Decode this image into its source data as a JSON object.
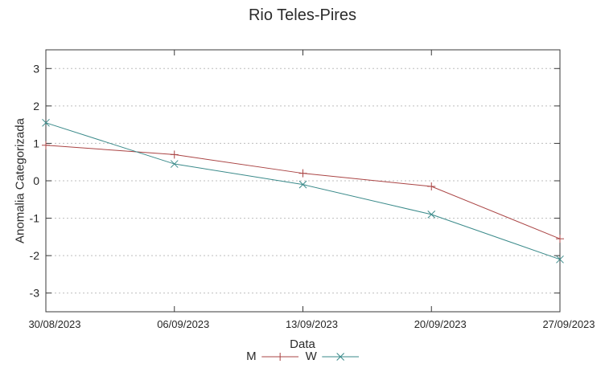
{
  "chart": {
    "title": "Rio Teles-Pires",
    "xlabel": "Data",
    "ylabel": "Anomalia Categorizada"
  },
  "chart_data": {
    "type": "line",
    "title": "Rio Teles-Pires",
    "xlabel": "Data",
    "ylabel": "Anomalia Categorizada",
    "categories": [
      "30/08/2023",
      "06/09/2023",
      "13/09/2023",
      "20/09/2023",
      "27/09/2023"
    ],
    "series": [
      {
        "name": "M",
        "color": "#aa4444",
        "marker": "plus",
        "values": [
          0.95,
          0.7,
          0.2,
          -0.15,
          -1.55
        ]
      },
      {
        "name": "W",
        "color": "#3a8a8a",
        "marker": "cross",
        "values": [
          1.55,
          0.45,
          -0.1,
          -0.9,
          -2.1
        ]
      }
    ],
    "yticks": [
      3,
      2,
      1,
      0,
      -1,
      -2,
      -3
    ],
    "ylim": [
      -3.5,
      3.5
    ],
    "grid": "horizontal-dotted",
    "grid_color": "#bdbdbd",
    "axis_color": "#3a3a3a",
    "legend_position": "below-x-axis"
  }
}
